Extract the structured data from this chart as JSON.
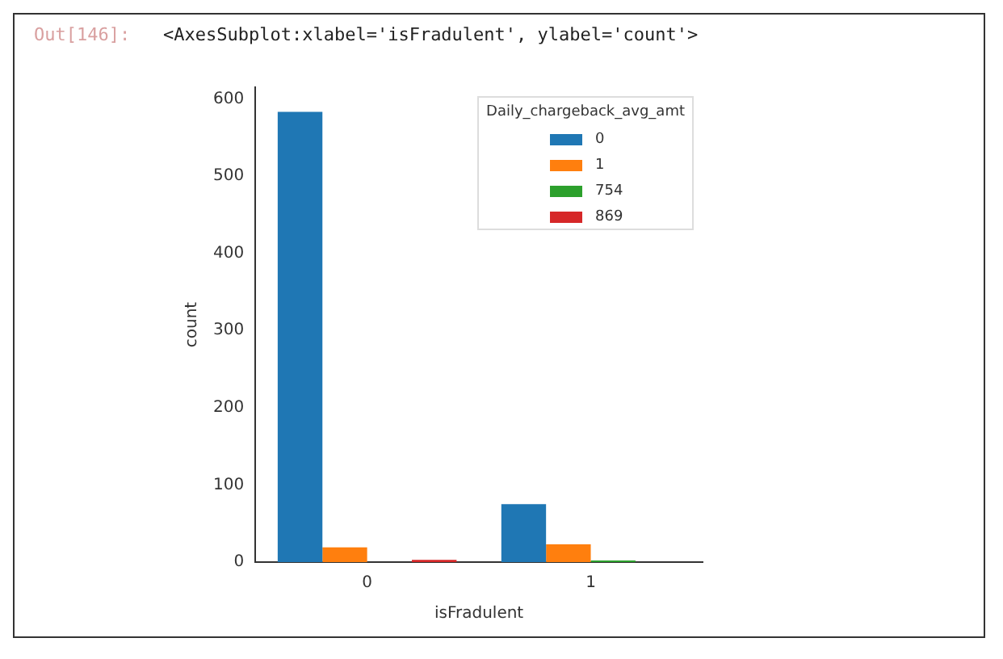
{
  "chart_data": {
    "type": "bar",
    "annotations": [
      "Out[146]:",
      "<AxesSubplot:xlabel='isFradulent', ylabel='count'>"
    ],
    "xlabel": "isFradulent",
    "ylabel": "count",
    "legend_title": "Daily_chargeback_avg_amt",
    "legend": "top right",
    "grid": false,
    "categories": [
      "0",
      "1"
    ],
    "ylim": [
      0,
      615
    ],
    "yticks": [
      0,
      100,
      200,
      300,
      400,
      500,
      600
    ],
    "series": [
      {
        "name": "0",
        "color": "#1f77b4",
        "values": [
          583,
          75
        ]
      },
      {
        "name": "1",
        "color": "#ff7f0e",
        "values": [
          19,
          23
        ]
      },
      {
        "name": "754",
        "color": "#2ca02c",
        "values": [
          0,
          2
        ]
      },
      {
        "name": "869",
        "color": "#d62728",
        "values": [
          3,
          0
        ]
      }
    ]
  }
}
